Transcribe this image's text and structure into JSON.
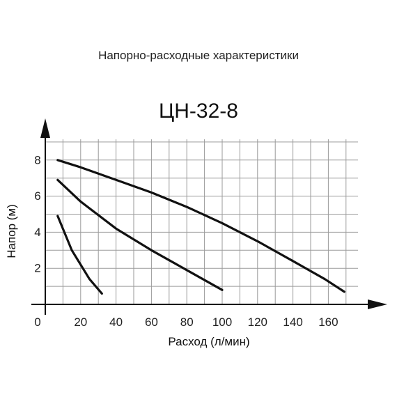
{
  "chart_data": {
    "type": "line",
    "title": "Напорно-расходные характеристики",
    "subtitle": "ЦН-32-8",
    "xlabel": "Расход (л/мин)",
    "ylabel": "Напор (м)",
    "xlim": [
      0,
      180
    ],
    "ylim": [
      0,
      9
    ],
    "x_ticks": [
      0,
      20,
      40,
      60,
      80,
      100,
      120,
      140,
      160
    ],
    "y_ticks": [
      2,
      4,
      6,
      8
    ],
    "x_tick_labels": [
      "0",
      "20",
      "40",
      "60",
      "80",
      "100",
      "120",
      "140",
      "160"
    ],
    "y_tick_labels": [
      "2",
      "4",
      "6",
      "8"
    ],
    "x_grid_step": 10,
    "y_grid_step": 1,
    "grid": true,
    "legend": "none",
    "series": [
      {
        "x": [
          7,
          20,
          40,
          60,
          80,
          100,
          120,
          140,
          158,
          169
        ],
        "y": [
          8.0,
          7.6,
          6.9,
          6.2,
          5.4,
          4.5,
          3.5,
          2.4,
          1.4,
          0.7
        ]
      },
      {
        "x": [
          7,
          20,
          40,
          60,
          80,
          100
        ],
        "y": [
          6.9,
          5.7,
          4.2,
          3.0,
          1.9,
          0.8
        ]
      },
      {
        "x": [
          7,
          15,
          25,
          32
        ],
        "y": [
          4.9,
          3.0,
          1.4,
          0.6
        ]
      }
    ],
    "colors": {
      "curve": "#111111",
      "grid": "#9a9a9a",
      "axis": "#111111"
    }
  }
}
